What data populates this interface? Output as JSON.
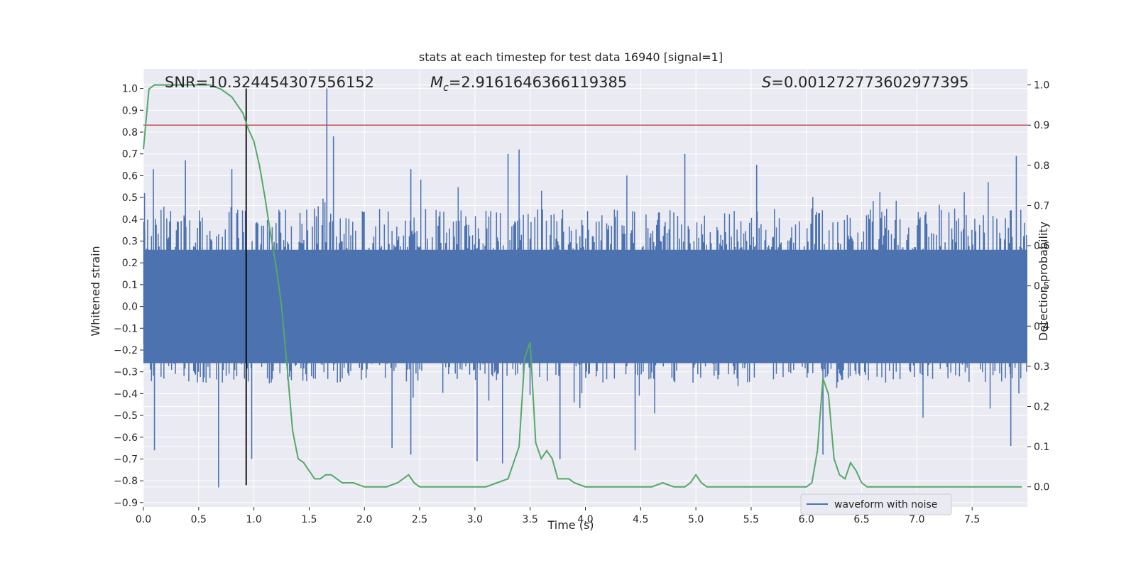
{
  "chart_data": {
    "type": "line",
    "title": "stats at each timestep for test data 16940 [signal=1]",
    "xlabel": "Time (s)",
    "ylabel_left": "Whitened strain",
    "ylabel_right": "Detection probability",
    "xlim": [
      0.0,
      8.0
    ],
    "ylim_left": [
      -0.92,
      1.09
    ],
    "ylim_right": [
      -0.05,
      1.04
    ],
    "xticks": [
      "0.0",
      "0.5",
      "1.0",
      "1.5",
      "2.0",
      "2.5",
      "3.0",
      "3.5",
      "4.0",
      "4.5",
      "5.0",
      "5.5",
      "6.0",
      "6.5",
      "7.0",
      "7.5"
    ],
    "yticks_left": [
      "-0.9",
      "-0.8",
      "-0.7",
      "-0.6",
      "-0.5",
      "-0.4",
      "-0.3",
      "-0.2",
      "-0.1",
      "0.0",
      "0.1",
      "0.2",
      "0.3",
      "0.4",
      "0.5",
      "0.6",
      "0.7",
      "0.8",
      "0.9",
      "1.0"
    ],
    "yticks_right": [
      "0.0",
      "0.1",
      "0.2",
      "0.3",
      "0.4",
      "0.5",
      "0.6",
      "0.7",
      "0.8",
      "0.9",
      "1.0"
    ],
    "grid": true,
    "legend": {
      "position": "lower-right",
      "entries": [
        "waveform with noise"
      ]
    },
    "annotations": {
      "snr": "SNR=10.324454307556152",
      "mc_symbol": "M",
      "mc_sub": "c",
      "mc_value": "=2.9161646366119385",
      "s_symbol": "S",
      "s_value": "=0.001272773602977395"
    },
    "waveform": {
      "name": "waveform with noise",
      "color": "#4c72b0",
      "approx_upper_envelope": 0.45,
      "approx_lower_envelope": -0.35,
      "peaks": [
        {
          "x": 0.01,
          "y": 0.52
        },
        {
          "x": 0.09,
          "y": 0.63
        },
        {
          "x": 0.38,
          "y": 0.67
        },
        {
          "x": 0.8,
          "y": 0.63
        },
        {
          "x": 1.66,
          "y": 1.0
        },
        {
          "x": 1.72,
          "y": 0.78
        },
        {
          "x": 2.42,
          "y": 0.63
        },
        {
          "x": 3.3,
          "y": 0.7
        },
        {
          "x": 3.4,
          "y": 0.72
        },
        {
          "x": 4.9,
          "y": 0.7
        },
        {
          "x": 5.55,
          "y": 0.65
        },
        {
          "x": 7.9,
          "y": 0.69
        },
        {
          "x": 0.1,
          "y": -0.66
        },
        {
          "x": 0.68,
          "y": -0.83
        },
        {
          "x": 0.98,
          "y": -0.7
        },
        {
          "x": 2.25,
          "y": -0.65
        },
        {
          "x": 2.42,
          "y": -0.68
        },
        {
          "x": 3.02,
          "y": -0.71
        },
        {
          "x": 3.25,
          "y": -0.72
        },
        {
          "x": 3.77,
          "y": -0.7
        },
        {
          "x": 4.45,
          "y": -0.66
        },
        {
          "x": 6.15,
          "y": -0.68
        },
        {
          "x": 7.85,
          "y": -0.64
        }
      ]
    },
    "detection_probability": {
      "color": "#55a868",
      "x": [
        0.0,
        0.05,
        0.1,
        0.2,
        0.3,
        0.4,
        0.5,
        0.6,
        0.7,
        0.8,
        0.85,
        0.9,
        0.95,
        1.0,
        1.05,
        1.1,
        1.15,
        1.2,
        1.25,
        1.3,
        1.35,
        1.4,
        1.45,
        1.5,
        1.55,
        1.6,
        1.65,
        1.7,
        1.75,
        1.8,
        1.85,
        1.9,
        2.0,
        2.1,
        2.2,
        2.3,
        2.35,
        2.4,
        2.45,
        2.5,
        2.55,
        2.6,
        2.7,
        2.8,
        2.9,
        3.0,
        3.1,
        3.2,
        3.3,
        3.4,
        3.45,
        3.5,
        3.55,
        3.6,
        3.65,
        3.7,
        3.75,
        3.8,
        3.85,
        3.9,
        4.0,
        4.05,
        4.1,
        4.2,
        4.3,
        4.4,
        4.5,
        4.6,
        4.7,
        4.8,
        4.85,
        4.9,
        4.95,
        5.0,
        5.05,
        5.1,
        5.2,
        5.3,
        5.4,
        5.5,
        5.6,
        5.7,
        5.8,
        5.9,
        6.0,
        6.05,
        6.1,
        6.15,
        6.2,
        6.25,
        6.3,
        6.35,
        6.4,
        6.45,
        6.5,
        6.55,
        6.6,
        6.7,
        6.8,
        6.9,
        7.0,
        7.2,
        7.4,
        7.6,
        7.8,
        7.95
      ],
      "y": [
        0.84,
        0.99,
        1.0,
        1.0,
        1.0,
        1.0,
        1.0,
        1.0,
        0.99,
        0.97,
        0.95,
        0.93,
        0.89,
        0.86,
        0.8,
        0.72,
        0.63,
        0.55,
        0.45,
        0.3,
        0.14,
        0.07,
        0.06,
        0.04,
        0.02,
        0.02,
        0.03,
        0.03,
        0.02,
        0.01,
        0.01,
        0.01,
        0.0,
        0.0,
        0.0,
        0.01,
        0.02,
        0.03,
        0.01,
        0.0,
        0.0,
        0.0,
        0.0,
        0.0,
        0.0,
        0.0,
        0.0,
        0.01,
        0.02,
        0.1,
        0.32,
        0.36,
        0.11,
        0.07,
        0.09,
        0.07,
        0.02,
        0.02,
        0.02,
        0.01,
        0.0,
        0.0,
        0.0,
        0.0,
        0.0,
        0.0,
        0.0,
        0.0,
        0.01,
        0.0,
        0.0,
        0.0,
        0.01,
        0.03,
        0.01,
        0.0,
        0.0,
        0.0,
        0.0,
        0.0,
        0.0,
        0.0,
        0.0,
        0.0,
        0.0,
        0.01,
        0.09,
        0.27,
        0.23,
        0.07,
        0.03,
        0.02,
        0.06,
        0.04,
        0.01,
        0.0,
        0.0,
        0.0,
        0.0,
        0.0,
        0.0,
        0.0,
        0.0,
        0.0,
        0.0,
        0.0
      ]
    },
    "threshold_line": {
      "value": 0.9,
      "color": "#c44e52"
    },
    "marker_line": {
      "x": 0.93,
      "y_range": [
        -0.82,
        1.0
      ],
      "color": "#000000"
    },
    "background_color": "#eaeaf2",
    "grid_color": "#ffffff"
  }
}
